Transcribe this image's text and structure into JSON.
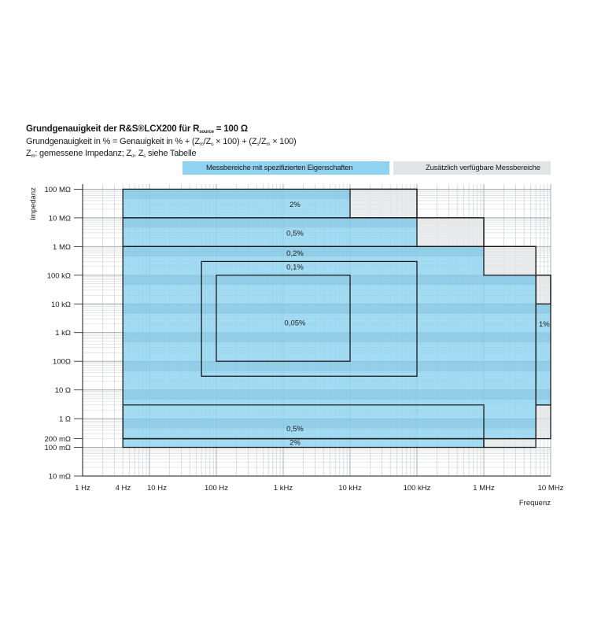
{
  "header": {
    "title_pre": "Grundgenauigkeit der R&S®LCX200 für R",
    "title_sub": "source",
    "title_post": " = 100 Ω",
    "line2": [
      {
        "t": "Grundgenauigkeit in % = Genauigkeit in % + (Z"
      },
      {
        "s": "m"
      },
      {
        "t": "/Z"
      },
      {
        "s": "o"
      },
      {
        "t": " × 100) + (Z"
      },
      {
        "s": "s"
      },
      {
        "t": "/Z"
      },
      {
        "s": "m"
      },
      {
        "t": " × 100)"
      }
    ],
    "line3": [
      {
        "t": "Z"
      },
      {
        "s": "m"
      },
      {
        "t": ": gemessene Impedanz; Z"
      },
      {
        "s": "o"
      },
      {
        "t": ", Z"
      },
      {
        "s": "s"
      },
      {
        "t": " siehe Tabelle"
      }
    ]
  },
  "legend": {
    "specified": {
      "label": "Messbereiche mit spezifizierten Eigenschaften",
      "color": "#8fd3f0"
    },
    "additional": {
      "label": "Zusätzlich verfügbare Messbereiche",
      "color": "#e3e4e5"
    }
  },
  "chart_data": {
    "type": "area",
    "x_scale": "log",
    "y_scale": "log",
    "xlabel": "Frequenz",
    "ylabel": "Impedanz",
    "xlim_hz": [
      1,
      10000000
    ],
    "ylim_ohm": [
      0.01,
      150000000
    ],
    "x_ticks": [
      {
        "value": 1,
        "label": "1 Hz"
      },
      {
        "value": 4,
        "label": "4 Hz"
      },
      {
        "value": 10,
        "label": "10 Hz"
      },
      {
        "value": 100,
        "label": "100 Hz"
      },
      {
        "value": 1000,
        "label": "1 kHz"
      },
      {
        "value": 10000,
        "label": "10 kHz"
      },
      {
        "value": 100000,
        "label": "100 kHz"
      },
      {
        "value": 1000000,
        "label": "1 MHz"
      },
      {
        "value": 10000000,
        "label": "10 MHz"
      }
    ],
    "y_ticks": [
      {
        "value": 100000000,
        "label": "100 MΩ"
      },
      {
        "value": 10000000,
        "label": "10 MΩ"
      },
      {
        "value": 1000000,
        "label": "1 MΩ"
      },
      {
        "value": 100000,
        "label": "100 kΩ"
      },
      {
        "value": 10000,
        "label": "10 kΩ"
      },
      {
        "value": 1000,
        "label": "1 kΩ"
      },
      {
        "value": 100,
        "label": "100Ω"
      },
      {
        "value": 10,
        "label": "10 Ω"
      },
      {
        "value": 1,
        "label": "1 Ω"
      },
      {
        "value": 0.2,
        "label": "200 mΩ"
      },
      {
        "value": 0.1,
        "label": "100 mΩ"
      },
      {
        "value": 0.01,
        "label": "10 mΩ"
      }
    ],
    "specified_region": [
      [
        4,
        100000000
      ],
      [
        10000,
        100000000
      ],
      [
        10000,
        10000000
      ],
      [
        100000,
        10000000
      ],
      [
        100000,
        1000000
      ],
      [
        1000000,
        1000000
      ],
      [
        1000000,
        100000
      ],
      [
        6000000,
        100000
      ],
      [
        6000000,
        10000
      ],
      [
        10000000,
        10000
      ],
      [
        10000000,
        3
      ],
      [
        6000000,
        3
      ],
      [
        6000000,
        0.2
      ],
      [
        1000000,
        0.2
      ],
      [
        1000000,
        0.1
      ],
      [
        4,
        0.1
      ]
    ],
    "additional_regions": [
      {
        "x": [
          10000,
          100000
        ],
        "y": [
          10000000,
          100000000
        ]
      },
      {
        "x": [
          100000,
          1000000
        ],
        "y": [
          1000000,
          10000000
        ]
      },
      {
        "x": [
          1000000,
          6000000
        ],
        "y": [
          100000,
          1000000
        ]
      },
      {
        "x": [
          6000000,
          10000000
        ],
        "y": [
          10000,
          100000
        ]
      },
      {
        "x": [
          6000000,
          10000000
        ],
        "y": [
          0.2,
          3
        ]
      },
      {
        "x": [
          1000000,
          6000000
        ],
        "y": [
          0.1,
          0.2
        ]
      }
    ],
    "accuracy_regions": [
      {
        "label": "2%",
        "x": [
          4,
          100000
        ],
        "y": [
          10000000,
          100000000
        ],
        "label_at": [
          1000,
          30000000
        ]
      },
      {
        "label": "0,5%",
        "x": [
          4,
          1000000
        ],
        "y": [
          1000000,
          10000000
        ],
        "label_at": [
          1000,
          3000000
        ]
      },
      {
        "label": "0,2%",
        "x": [
          4,
          6000000
        ],
        "y": [
          0.2,
          1000000
        ],
        "label_at": [
          1000,
          600000
        ]
      },
      {
        "label": "0,1%",
        "x": [
          60,
          100000
        ],
        "y": [
          30,
          300000
        ],
        "label_at": [
          1000,
          200000
        ]
      },
      {
        "label": "0,05%",
        "x": [
          100,
          10000
        ],
        "y": [
          100,
          100000
        ],
        "label_at": [
          1000,
          2200
        ]
      },
      {
        "label": "0,5%",
        "x": [
          4,
          1000000
        ],
        "y": [
          3,
          0.2
        ],
        "label_at": [
          1000,
          0.45
        ]
      },
      {
        "label": "2%",
        "x": [
          4,
          1000000
        ],
        "y": [
          0.1,
          0.2
        ],
        "label_at": [
          1000,
          0.15
        ]
      },
      {
        "label": "1%",
        "x": [
          6000000,
          10000000
        ],
        "y": [
          3,
          100000
        ],
        "label_at": [
          7800000,
          2000
        ]
      }
    ]
  }
}
